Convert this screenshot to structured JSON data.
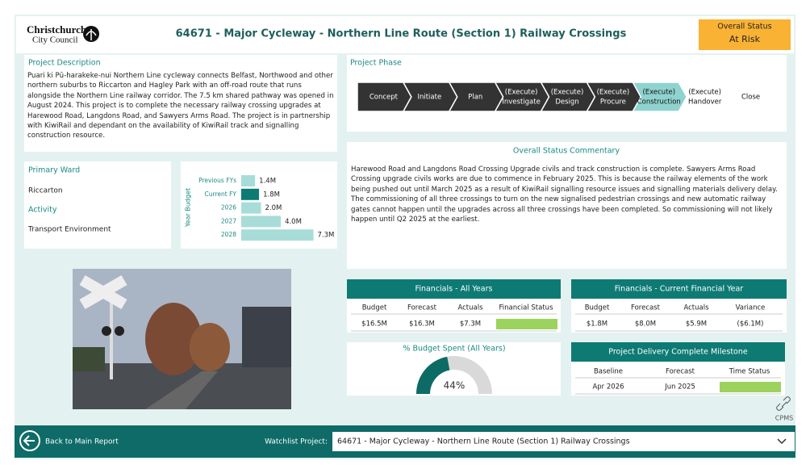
{
  "header": {
    "logo_line1": "Christchurch",
    "logo_line2": "City Council",
    "title": "64671 - Major Cycleway - Northern Line Route (Section 1) Railway Crossings",
    "status_label": "Overall Status",
    "status_value": "At Risk",
    "status_color": "#f9b233"
  },
  "description": {
    "title": "Project Description",
    "text": "Puari ki Pū-harakeke-nui Northern Line cycleway connects Belfast, Northwood and other northern suburbs to Riccarton and Hagley Park with an off-road route that runs alongside the Northern Line railway corridor. The 7.5 km shared pathway was opened in August 2024. This project is to complete the necessary railway crossing upgrades at Harewood Road, Langdons Road, and Sawyers Arms Road. The project is in partnership with KiwiRail and dependant on the availability of KiwiRail track and signalling construction resource."
  },
  "phase": {
    "title": "Project Phase",
    "steps": [
      {
        "lines": [
          "Concept"
        ]
      },
      {
        "lines": [
          "Initiate"
        ]
      },
      {
        "lines": [
          "Plan"
        ]
      },
      {
        "lines": [
          "(Execute)",
          "Investigate"
        ]
      },
      {
        "lines": [
          "(Execute)",
          "Design"
        ]
      },
      {
        "lines": [
          "(Execute)",
          "Procure"
        ]
      },
      {
        "lines": [
          "(Execute)",
          "Construction"
        ],
        "active": true
      },
      {
        "lines": [
          "(Execute)",
          "Handover"
        ]
      },
      {
        "lines": [
          "Close"
        ]
      }
    ]
  },
  "ward": {
    "title": "Primary Ward",
    "value": "Riccarton",
    "activity_title": "Activity",
    "activity_value": "Transport Environment"
  },
  "chart_data": [
    {
      "type": "hbar",
      "y_label": "Year Budget",
      "categories": [
        "Previous FYs",
        "Current FY",
        "2026",
        "2027",
        "2028"
      ],
      "values": [
        1.4,
        1.8,
        2.0,
        4.0,
        7.3
      ],
      "value_labels": [
        "1.4M",
        "1.8M",
        "2.0M",
        "4.0M",
        "7.3M"
      ],
      "colors": [
        "#a8dcd9",
        "#0d7a74",
        "#a8dcd9",
        "#a8dcd9",
        "#a8dcd9"
      ],
      "xlim": [
        0,
        7.5
      ]
    },
    {
      "type": "gauge",
      "title": "% Budget Spent (All Years)",
      "value": 44,
      "value_labels": "44%",
      "range": [
        0,
        100
      ],
      "color": "#0d6b66",
      "track_color": "#d9d9d9"
    }
  ],
  "commentary": {
    "title": "Overall Status Commentary",
    "text": "Harewood Road and Langdons Road Crossing Upgrade civils and track construction is complete. Sawyers Arms Road Crossing upgrade civils works are due to commence in February 2025. This is because the railway elements of the work being pushed out until March 2025 as a result of KiwiRail signalling resource issues and signalling materials delivery delay. The commissioning of all three crossings to turn on the new signalised pedestrian crossings and new automatic railway gates cannot happen until the upgrades across all three crossings have been completed. So commissioning will not likely happen until Q2 2025 at the earliest."
  },
  "financials_all": {
    "title": "Financials - All Years",
    "columns": [
      "Budget",
      "Forecast",
      "Actuals",
      "Financial Status"
    ],
    "row": [
      "$16.5M",
      "$16.3M",
      "$7.3M"
    ],
    "status_color": "#9bd35e"
  },
  "financials_current": {
    "title": "Financials - Current Financial Year",
    "columns": [
      "Budget",
      "Forecast",
      "Actuals",
      "Variance"
    ],
    "row": [
      "$1.8M",
      "$8.0M",
      "$5.9M",
      "($6.1M)"
    ]
  },
  "milestone": {
    "title": "Project Delivery Complete Milestone",
    "columns": [
      "Baseline",
      "Forecast",
      "Time Status"
    ],
    "row": [
      "Apr 2026",
      "Jun 2025"
    ],
    "status_color": "#9bd35e"
  },
  "cpms": "CPMS",
  "footer": {
    "back": "Back to Main Report",
    "watchlist_label": "Watchlist Project:",
    "watchlist_value": "64671 - Major Cycleway - Northern Line Route (Section 1) Railway Crossings"
  }
}
